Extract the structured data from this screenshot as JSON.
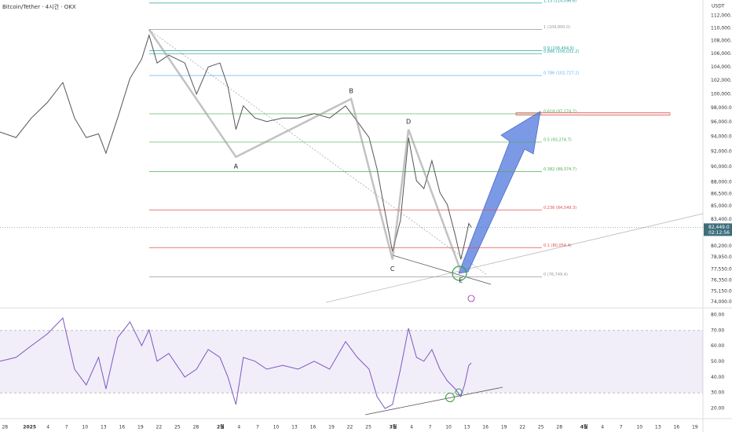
{
  "title": "Bitcoin/Tether · 4시간 · OKX",
  "currency": "USDT",
  "chart_data": [
    {
      "type": "line",
      "log_scale": true,
      "color": "#555555",
      "xlim": [
        -0.8,
        113.3
      ],
      "ylim": [
        73530,
        114600
      ],
      "yticks": [
        {
          "value": 112000,
          "label": "112,000.0"
        },
        {
          "value": 110000,
          "label": "110,000.0"
        },
        {
          "value": 108000,
          "label": "108,000.0"
        },
        {
          "value": 106000,
          "label": "106,000.0"
        },
        {
          "value": 104000,
          "label": "104,000.0"
        },
        {
          "value": 102000,
          "label": "102,000.0"
        },
        {
          "value": 100000,
          "label": "100,000.0"
        },
        {
          "value": 98000,
          "label": "98,000.0"
        },
        {
          "value": 96000,
          "label": "96,000.0"
        },
        {
          "value": 94000,
          "label": "94,000.0"
        },
        {
          "value": 92000,
          "label": "92,000.0"
        },
        {
          "value": 90000,
          "label": "90,000.0"
        },
        {
          "value": 88000,
          "label": "88,000.0"
        },
        {
          "value": 86500,
          "label": "86,500.0"
        },
        {
          "value": 85000,
          "label": "85,000.0"
        },
        {
          "value": 83400,
          "label": "83,400.0"
        },
        {
          "value": 80200,
          "label": "80,200.0"
        },
        {
          "value": 78950,
          "label": "78,950.0"
        },
        {
          "value": 77550,
          "label": "77,550.0"
        },
        {
          "value": 76350,
          "label": "76,350.0"
        },
        {
          "value": 75150,
          "label": "75,150.0"
        },
        {
          "value": 74000,
          "label": "74,000.0"
        }
      ],
      "x": [
        -0.8,
        1.8,
        4.3,
        6.9,
        9.4,
        11.3,
        13.2,
        15.2,
        16.4,
        18.3,
        20.3,
        22.2,
        23.4,
        24.7,
        26.6,
        29.2,
        31.1,
        33.0,
        34.9,
        36.2,
        37.5,
        38.7,
        40.6,
        42.5,
        45.1,
        47.6,
        50.2,
        52.7,
        55.3,
        57.2,
        59.1,
        60.4,
        61.7,
        62.9,
        64.2,
        65.5,
        66.8,
        68.0,
        69.3,
        70.6,
        71.8,
        73.1,
        74.0,
        74.6,
        75.3,
        75.7
      ],
      "values": [
        94650,
        93900,
        96600,
        98800,
        101700,
        96600,
        93900,
        94400,
        91800,
        96600,
        102300,
        105200,
        108900,
        104600,
        105800,
        104600,
        100000,
        104000,
        104600,
        101100,
        95000,
        98300,
        96600,
        96100,
        96600,
        96600,
        97200,
        96600,
        98300,
        96100,
        93900,
        89700,
        84300,
        79600,
        83300,
        93900,
        88200,
        87200,
        90800,
        86700,
        85200,
        81500,
        78700,
        80500,
        82900,
        82449
      ],
      "last_price": {
        "value": 82449,
        "label": "82,449.0"
      },
      "countdown": "02:12:56",
      "pattern": {
        "x": [
          23.4,
          37.5,
          56.2,
          62.9,
          65.5,
          74.0
        ],
        "values": [
          109800,
          91300,
          99300,
          78700,
          95000,
          77400
        ],
        "labels": [
          null,
          "A",
          "B",
          "C",
          "D",
          "E"
        ]
      },
      "fib_levels": [
        {
          "price": 114096.6,
          "label": "1.13 (114,096.6)",
          "color": "#26a69a"
        },
        {
          "price": 109800.0,
          "label": "1 (109,800.0)",
          "color": "#999999"
        },
        {
          "price": 106494.9,
          "label": "0.9 (106,494.9)",
          "color": "#26a69a"
        },
        {
          "price": 106032.2,
          "label": "0.886 (106,032.2)",
          "color": "#26a69a"
        },
        {
          "price": 102727.2,
          "label": "0.786 (102,727.2)",
          "color": "#64b5f6"
        },
        {
          "price": 97174.7,
          "label": "0.618 (97,174.7)",
          "color": "#4caf50"
        },
        {
          "price": 93274.7,
          "label": "0.5 (93,274.7)",
          "color": "#4caf50"
        },
        {
          "price": 89374.7,
          "label": "0.382 (89,374.7)",
          "color": "#4caf50"
        },
        {
          "price": 84549.3,
          "label": "0.236 (84,549.3)",
          "color": "#e05050"
        },
        {
          "price": 80054.4,
          "label": "0.1 (80,054.4)",
          "color": "#e05050"
        },
        {
          "price": 76749.4,
          "label": "0 (76,749.4)",
          "color": "#999999"
        }
      ]
    },
    {
      "type": "line",
      "color": "#7e57c2",
      "xlim": [
        -0.8,
        113.3
      ],
      "ylim": [
        15,
        83
      ],
      "band": [
        30,
        70
      ],
      "yticks": [
        {
          "value": 80,
          "label": "80.00"
        },
        {
          "value": 70,
          "label": "70.00"
        },
        {
          "value": 60,
          "label": "60.00"
        },
        {
          "value": 50,
          "label": "50.00"
        },
        {
          "value": 40,
          "label": "40.00"
        },
        {
          "value": 30,
          "label": "30.00"
        },
        {
          "value": 20,
          "label": "20.00"
        }
      ],
      "x": [
        -0.8,
        1.8,
        4.3,
        6.9,
        9.4,
        11.3,
        13.2,
        15.2,
        16.4,
        18.3,
        20.3,
        22.2,
        23.4,
        24.7,
        26.6,
        29.2,
        31.1,
        33.0,
        34.9,
        36.2,
        37.5,
        38.7,
        40.6,
        42.5,
        45.1,
        47.6,
        50.2,
        52.7,
        55.3,
        57.2,
        59.1,
        60.4,
        61.7,
        62.9,
        64.2,
        65.5,
        66.8,
        68.0,
        69.3,
        70.6,
        71.8,
        73.1,
        74.0,
        74.6,
        75.3,
        75.7
      ],
      "values": [
        50.3,
        52.8,
        60.3,
        67.9,
        78.0,
        45.2,
        35.1,
        52.8,
        32.6,
        65.4,
        75.5,
        60.3,
        70.4,
        50.3,
        55.3,
        40.2,
        45.2,
        57.8,
        52.8,
        40.2,
        22.5,
        52.8,
        50.3,
        45.2,
        47.7,
        45.2,
        50.3,
        45.2,
        62.9,
        52.8,
        45.2,
        27.6,
        20.0,
        22.5,
        45.2,
        71.4,
        52.8,
        50.3,
        57.8,
        45.2,
        37.7,
        32.6,
        27.6,
        35.1,
        47.7,
        49.2
      ],
      "xticks": [
        {
          "value": 0,
          "label": "28"
        },
        {
          "value": 4,
          "label": "2025"
        },
        {
          "value": 7,
          "label": "4"
        },
        {
          "value": 10,
          "label": "7"
        },
        {
          "value": 13,
          "label": "10"
        },
        {
          "value": 16,
          "label": "13"
        },
        {
          "value": 19,
          "label": "16"
        },
        {
          "value": 22,
          "label": "19"
        },
        {
          "value": 25,
          "label": "22"
        },
        {
          "value": 28,
          "label": "25"
        },
        {
          "value": 31,
          "label": "28"
        },
        {
          "value": 35,
          "label": "2월"
        },
        {
          "value": 38,
          "label": "4"
        },
        {
          "value": 41,
          "label": "7"
        },
        {
          "value": 44,
          "label": "10"
        },
        {
          "value": 47,
          "label": "13"
        },
        {
          "value": 50,
          "label": "16"
        },
        {
          "value": 53,
          "label": "19"
        },
        {
          "value": 56,
          "label": "22"
        },
        {
          "value": 59,
          "label": "25"
        },
        {
          "value": 63,
          "label": "3월"
        },
        {
          "value": 66,
          "label": "4"
        },
        {
          "value": 69,
          "label": "7"
        },
        {
          "value": 72,
          "label": "10"
        },
        {
          "value": 75,
          "label": "13"
        },
        {
          "value": 78,
          "label": "16"
        },
        {
          "value": 81,
          "label": "19"
        },
        {
          "value": 84,
          "label": "22"
        },
        {
          "value": 87,
          "label": "25"
        },
        {
          "value": 90,
          "label": "28"
        },
        {
          "value": 94,
          "label": "4월"
        },
        {
          "value": 97,
          "label": "4"
        },
        {
          "value": 100,
          "label": "7"
        },
        {
          "value": 103,
          "label": "10"
        },
        {
          "value": 106,
          "label": "13"
        },
        {
          "value": 109,
          "label": "16"
        },
        {
          "value": 112,
          "label": "19"
        }
      ]
    }
  ]
}
